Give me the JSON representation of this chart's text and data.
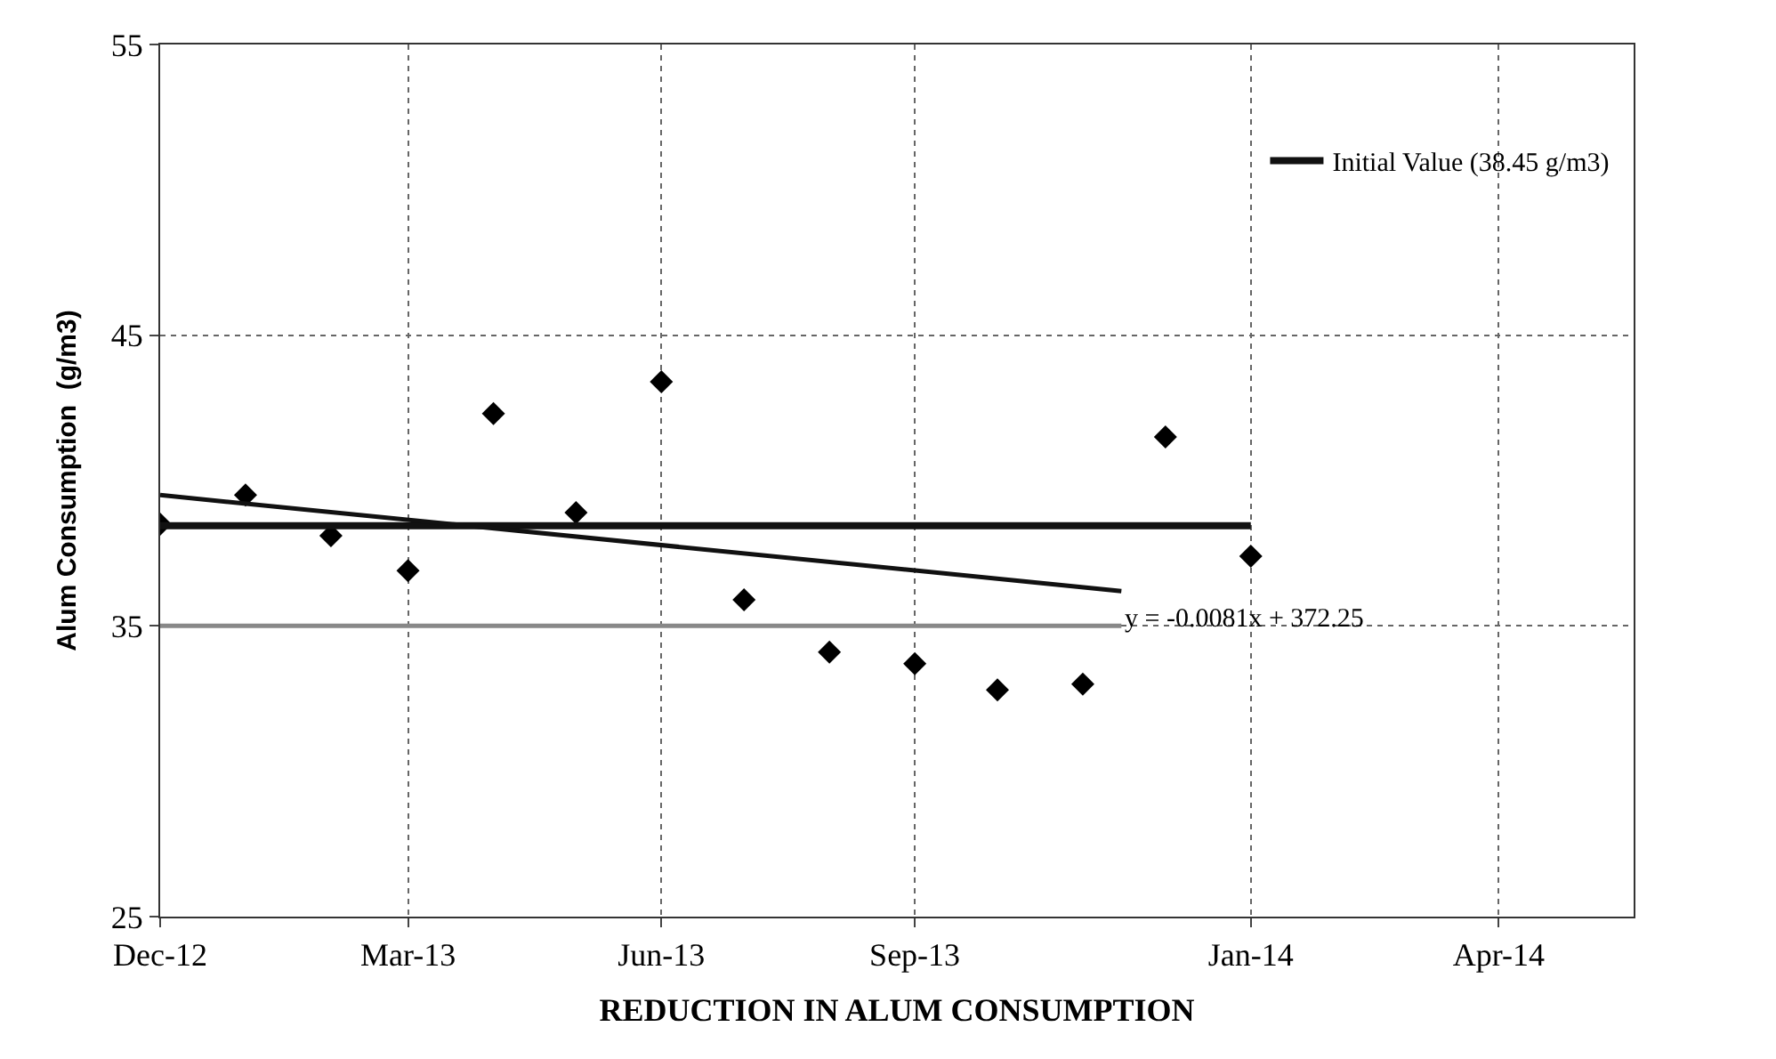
{
  "chart_data": {
    "type": "scatter",
    "xlabel": "REDUCTION IN ALUM CONSUMPTION",
    "ylabel": "Alum Consumption  (g/m3)",
    "xlim": [
      "2012-12-01",
      "2014-05-20"
    ],
    "ylim": [
      25,
      55
    ],
    "yticks": [
      25,
      35,
      45,
      55
    ],
    "xticks": [
      {
        "value": "2012-12-01",
        "label": "Dec-12"
      },
      {
        "value": "2013-03-01",
        "label": "Mar-13"
      },
      {
        "value": "2013-06-01",
        "label": "Jun-13"
      },
      {
        "value": "2013-09-01",
        "label": "Sep-13"
      },
      {
        "value": "2014-01-01",
        "label": "Jan-14"
      },
      {
        "value": "2014-04-01",
        "label": "Apr-14"
      }
    ],
    "grid": true,
    "legend": "top right",
    "series": [
      {
        "marker": "diamond",
        "color": "#000000",
        "x": [
          "2012-12-01",
          "2013-01-01",
          "2013-02-01",
          "2013-03-01",
          "2013-04-01",
          "2013-05-01",
          "2013-06-01",
          "2013-07-01",
          "2013-08-01",
          "2013-09-01",
          "2013-10-01",
          "2013-11-01",
          "2013-12-01",
          "2014-01-01"
        ],
        "values": [
          38.5,
          39.5,
          38.1,
          36.9,
          42.3,
          38.9,
          43.4,
          35.9,
          34.1,
          33.7,
          32.8,
          33.0,
          41.5,
          37.4
        ]
      },
      {
        "type": "line",
        "name": "Initial Value (38.45 g/m3)",
        "color": "#111111",
        "x": [
          "2012-12-01",
          "2014-01-01"
        ],
        "values": [
          38.45,
          38.45
        ]
      },
      {
        "type": "line",
        "color": "#111111",
        "x": [
          "2012-12-01",
          "2013-11-15"
        ],
        "values": [
          39.5,
          36.2
        ]
      },
      {
        "type": "line",
        "color": "#888888",
        "x": [
          "2012-12-01",
          "2013-11-15"
        ],
        "values": [
          35,
          35
        ]
      }
    ],
    "annotations": [
      {
        "text": "y = -0.0081x + 372.25",
        "x": "2013-11-15",
        "y": 35.2
      }
    ]
  }
}
